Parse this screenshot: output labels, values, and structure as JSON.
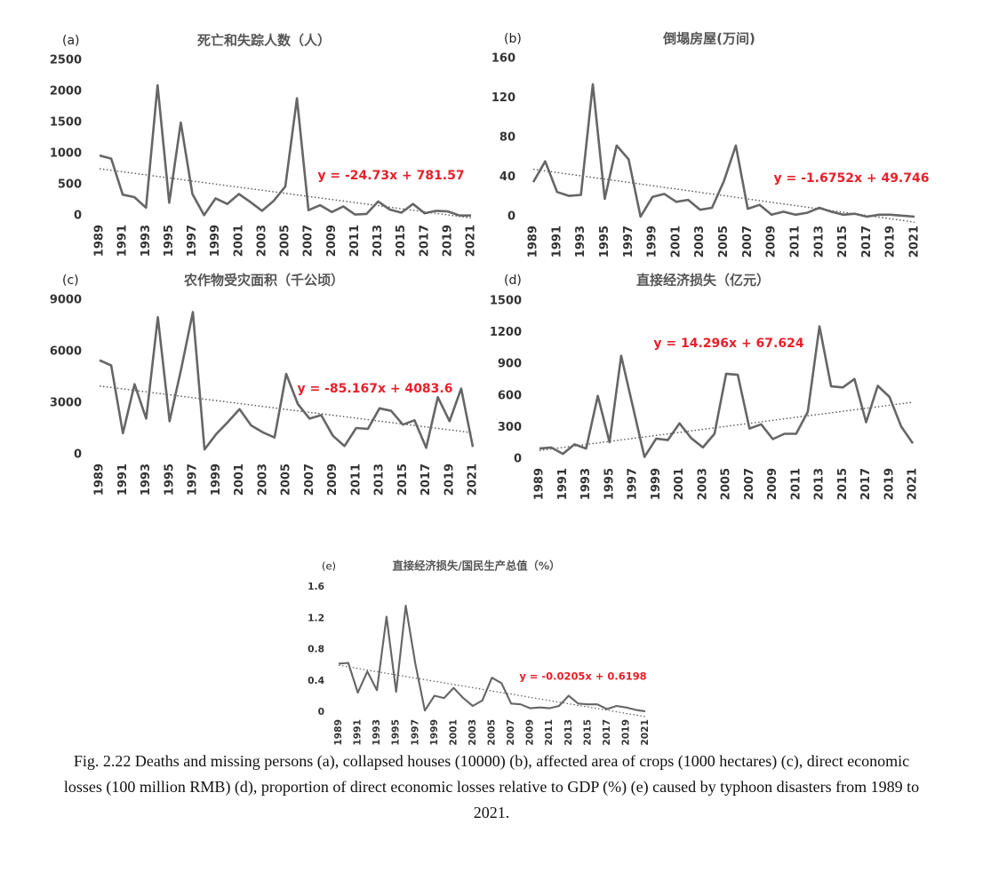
{
  "figure": {
    "caption": "Fig. 2.22 Deaths and missing persons (a), collapsed houses (10000) (b), affected area of crops (1000 hectares) (c), direct economic losses (100 million RMB) (d), proportion of direct economic losses relative to GDP (%) (e) caused by typhoon disasters from 1989 to 2021."
  },
  "chart_data": [
    {
      "panel": "(a)",
      "type": "line",
      "title": "死亡和失踪人数（人）",
      "x_tick_labels": [
        "1989",
        "1991",
        "1993",
        "1995",
        "1997",
        "1999",
        "2001",
        "2003",
        "2005",
        "2007",
        "2009",
        "2011",
        "2013",
        "2015",
        "2017",
        "2019",
        "2021"
      ],
      "y_tick_labels": [
        "0",
        "500",
        "1000",
        "1500",
        "2000",
        "2500"
      ],
      "x": [
        1989,
        1990,
        1991,
        1992,
        1993,
        1994,
        1995,
        1996,
        1997,
        1998,
        1999,
        2000,
        2001,
        2002,
        2003,
        2004,
        2005,
        2006,
        2007,
        2008,
        2009,
        2010,
        2011,
        2012,
        2013,
        2014,
        2015,
        2016,
        2017,
        2018,
        2019,
        2020,
        2021
      ],
      "values": [
        970,
        920,
        340,
        300,
        130,
        2100,
        210,
        1500,
        350,
        10,
        280,
        190,
        350,
        220,
        80,
        240,
        470,
        1890,
        90,
        170,
        60,
        150,
        20,
        30,
        230,
        100,
        50,
        190,
        40,
        80,
        70,
        5,
        5
      ],
      "ylim": [
        0,
        2500
      ],
      "trendline": {
        "equation": "y = -24.73x + 781.57",
        "slope": -24.73,
        "intercept": 781.57
      },
      "grid": false
    },
    {
      "panel": "(b)",
      "type": "line",
      "title": "倒塌房屋(万间)",
      "x_tick_labels": [
        "1989",
        "1991",
        "1993",
        "1995",
        "1997",
        "1999",
        "2001",
        "2003",
        "2005",
        "2007",
        "2009",
        "2011",
        "2013",
        "2015",
        "2017",
        "2019",
        "2021"
      ],
      "y_tick_labels": [
        "0",
        "40",
        "80",
        "120",
        "160"
      ],
      "x": [
        1989,
        1990,
        1991,
        1992,
        1993,
        1994,
        1995,
        1996,
        1997,
        1998,
        1999,
        2000,
        2001,
        2002,
        2003,
        2004,
        2005,
        2006,
        2007,
        2008,
        2009,
        2010,
        2011,
        2012,
        2013,
        2014,
        2015,
        2016,
        2017,
        2018,
        2019,
        2020,
        2021
      ],
      "values": [
        35,
        56,
        25,
        21,
        22,
        134,
        18,
        72,
        58,
        0,
        20,
        23,
        15,
        17,
        7,
        9,
        36,
        72,
        8,
        12,
        2,
        5,
        2,
        4,
        9,
        5,
        2,
        3,
        0,
        2,
        2,
        1,
        0
      ],
      "ylim": [
        0,
        160
      ],
      "trendline": {
        "equation": "y = -1.6752x + 49.746",
        "slope": -1.6752,
        "intercept": 49.746
      },
      "grid": false
    },
    {
      "panel": "(c)",
      "type": "line",
      "title": "农作物受灾面积（千公顷）",
      "x_tick_labels": [
        "1989",
        "1991",
        "1993",
        "1995",
        "1997",
        "1999",
        "2001",
        "2003",
        "2005",
        "2007",
        "2009",
        "2011",
        "2013",
        "2015",
        "2017",
        "2019",
        "2021"
      ],
      "y_tick_labels": [
        "0",
        "3000",
        "6000",
        "9000"
      ],
      "x": [
        1989,
        1990,
        1991,
        1992,
        1993,
        1994,
        1995,
        1996,
        1997,
        1998,
        1999,
        2000,
        2001,
        2002,
        2003,
        2004,
        2005,
        2006,
        2007,
        2008,
        2009,
        2010,
        2011,
        2012,
        2013,
        2014,
        2015,
        2016,
        2017,
        2018,
        2019,
        2020,
        2021
      ],
      "values": [
        5500,
        5200,
        1250,
        4100,
        2100,
        8000,
        1950,
        5000,
        8300,
        300,
        1200,
        1900,
        2650,
        1700,
        1300,
        1000,
        4700,
        2950,
        2100,
        2300,
        1100,
        500,
        1550,
        1500,
        2700,
        2550,
        1750,
        2000,
        400,
        3350,
        1950,
        3850,
        450
      ],
      "ylim": [
        0,
        9000
      ],
      "trendline": {
        "equation": "y = -85.167x + 4083.6",
        "slope": -85.167,
        "intercept": 4083.6
      },
      "grid": false
    },
    {
      "panel": "(d)",
      "type": "line",
      "title": "直接经济损失（亿元）",
      "x_tick_labels": [
        "1989",
        "1991",
        "1993",
        "1995",
        "1997",
        "1999",
        "2001",
        "2003",
        "2005",
        "2007",
        "2009",
        "2011",
        "2013",
        "2015",
        "2017",
        "2019",
        "2021"
      ],
      "y_tick_labels": [
        "0",
        "300",
        "600",
        "900",
        "1200",
        "1500"
      ],
      "x": [
        1989,
        1990,
        1991,
        1992,
        1993,
        1994,
        1995,
        1996,
        1997,
        1998,
        1999,
        2000,
        2001,
        2002,
        2003,
        2004,
        2005,
        2006,
        2007,
        2008,
        2009,
        2010,
        2011,
        2012,
        2013,
        2014,
        2015,
        2016,
        2017,
        2018,
        2019,
        2020,
        2021
      ],
      "values": [
        100,
        110,
        50,
        140,
        100,
        600,
        160,
        980,
        500,
        20,
        195,
        180,
        340,
        200,
        110,
        240,
        810,
        800,
        290,
        330,
        190,
        240,
        240,
        450,
        1260,
        690,
        680,
        760,
        350,
        695,
        590,
        310,
        150
      ],
      "ylim": [
        0,
        1500
      ],
      "trendline": {
        "equation": "y = 14.296x + 67.624",
        "slope": 14.296,
        "intercept": 67.624
      },
      "grid": false
    },
    {
      "panel": "(e)",
      "type": "line",
      "title": "直接经济损失/国民生产总值（%）",
      "x_tick_labels": [
        "1989",
        "1991",
        "1993",
        "1995",
        "1997",
        "1999",
        "2001",
        "2003",
        "2005",
        "2007",
        "2009",
        "2011",
        "2013",
        "2015",
        "2017",
        "2019",
        "2021"
      ],
      "y_tick_labels": [
        "0",
        "0.4",
        "0.8",
        "1.2",
        "1.6"
      ],
      "x": [
        1989,
        1990,
        1991,
        1992,
        1993,
        1994,
        1995,
        1996,
        1997,
        1998,
        1999,
        2000,
        2001,
        2002,
        2003,
        2004,
        2005,
        2006,
        2007,
        2008,
        2009,
        2010,
        2011,
        2012,
        2013,
        2014,
        2015,
        2016,
        2017,
        2018,
        2019,
        2020,
        2021
      ],
      "values": [
        0.62,
        0.63,
        0.25,
        0.52,
        0.28,
        1.22,
        0.26,
        1.36,
        0.62,
        0.02,
        0.21,
        0.18,
        0.31,
        0.18,
        0.08,
        0.15,
        0.44,
        0.37,
        0.11,
        0.1,
        0.05,
        0.06,
        0.05,
        0.08,
        0.21,
        0.11,
        0.1,
        0.1,
        0.04,
        0.08,
        0.06,
        0.03,
        0.01
      ],
      "ylim": [
        0,
        1.6
      ],
      "trendline": {
        "equation": "y = -0.0205x + 0.6198",
        "slope": -0.0205,
        "intercept": 0.6198
      },
      "grid": false
    }
  ]
}
